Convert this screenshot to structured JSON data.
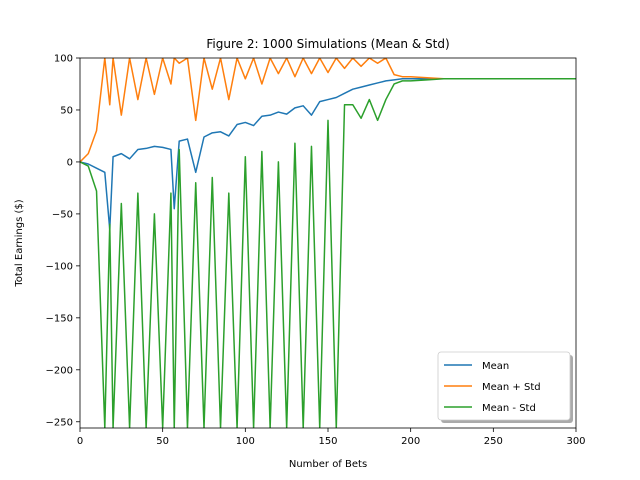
{
  "chart_data": {
    "type": "line",
    "title": "Figure 2: 1000 Simulations (Mean & Std)",
    "xlabel": "Number of Bets",
    "ylabel": "Total Earnings ($)",
    "xlim": [
      0,
      300
    ],
    "ylim": [
      -256,
      100
    ],
    "xticks": [
      0,
      50,
      100,
      150,
      200,
      250,
      300
    ],
    "xtick_labels": [
      "0",
      "50",
      "100",
      "150",
      "200",
      "250",
      "300"
    ],
    "yticks": [
      100,
      50,
      0,
      -50,
      -100,
      -150,
      -200,
      -250
    ],
    "ytick_labels": [
      "100",
      "50",
      "0",
      "−50",
      "−100",
      "−150",
      "−200",
      "−250"
    ],
    "grid": false,
    "legend_position": "lower right",
    "x": [
      0,
      5,
      10,
      15,
      18,
      20,
      25,
      30,
      35,
      40,
      45,
      50,
      55,
      57,
      60,
      65,
      70,
      75,
      80,
      85,
      90,
      95,
      100,
      105,
      110,
      115,
      120,
      125,
      130,
      135,
      140,
      145,
      150,
      155,
      160,
      165,
      170,
      175,
      180,
      185,
      190,
      195,
      200,
      210,
      220,
      300
    ],
    "series": [
      {
        "name": "Mean",
        "color": "#1f77b4",
        "values": [
          0,
          -2,
          -6,
          -10,
          -65,
          5,
          8,
          3,
          12,
          13,
          15,
          14,
          12,
          -45,
          20,
          22,
          -10,
          24,
          28,
          29,
          25,
          36,
          38,
          35,
          44,
          45,
          48,
          46,
          52,
          54,
          45,
          58,
          60,
          62,
          66,
          70,
          72,
          74,
          76,
          78,
          79,
          80,
          80,
          80,
          80,
          80
        ]
      },
      {
        "name": "Mean + Std",
        "color": "#ff7f0e",
        "values": [
          0,
          8,
          30,
          100,
          55,
          100,
          45,
          100,
          60,
          100,
          65,
          100,
          75,
          100,
          95,
          100,
          40,
          100,
          70,
          100,
          60,
          100,
          80,
          100,
          75,
          100,
          85,
          100,
          82,
          100,
          85,
          100,
          86,
          100,
          90,
          100,
          92,
          100,
          95,
          100,
          84,
          82,
          82,
          81,
          80,
          80
        ]
      },
      {
        "name": "Mean - Std",
        "color": "#2ca02c",
        "values": [
          0,
          -4,
          -28,
          -256,
          -60,
          -256,
          -40,
          -256,
          -30,
          -256,
          -50,
          -256,
          -30,
          -256,
          12,
          -256,
          -20,
          -256,
          -15,
          -256,
          -30,
          -256,
          5,
          -256,
          10,
          -256,
          0,
          -256,
          18,
          -256,
          15,
          -256,
          40,
          -256,
          55,
          55,
          42,
          60,
          40,
          60,
          75,
          78,
          78,
          79,
          80,
          80
        ]
      }
    ]
  }
}
